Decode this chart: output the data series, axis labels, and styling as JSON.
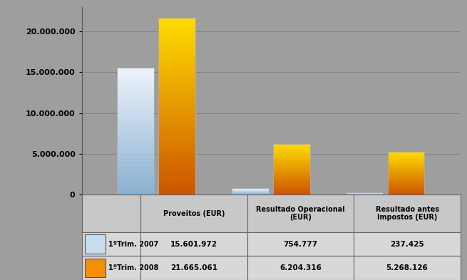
{
  "categories": [
    "Proveitos (EUR)",
    "Resultado Operacional\n(EUR)",
    "Resultado antes\nImpostos (EUR)"
  ],
  "series": [
    {
      "label": "1ºTrim. 2007",
      "values": [
        15601972,
        754777,
        237425
      ],
      "color_top": "#eef4fc",
      "color_bottom": "#8ab0d0",
      "edge_color": "#aaaaaa"
    },
    {
      "label": "1ºTrim. 2008",
      "values": [
        21665061,
        6204316,
        5268126
      ],
      "color_top": "#ffdd00",
      "color_bottom": "#cc5500",
      "edge_color": "#aaaaaa"
    }
  ],
  "table_rows": [
    [
      "1ºTrim. 2007",
      "15.601.972",
      "754.777",
      "237.425"
    ],
    [
      "1ºTrim. 2008",
      "21.665.061",
      "6.204.316",
      "5.268.126"
    ]
  ],
  "ylim": [
    0,
    23000000
  ],
  "yticks": [
    0,
    5000000,
    10000000,
    15000000,
    20000000
  ],
  "background_color": "#9e9e9e",
  "plot_bg_color": "#9e9e9e",
  "legend_box_colors": [
    "#c8ddf0",
    "#f0900a"
  ],
  "bar_width": 0.32,
  "figsize": [
    6.55,
    3.93
  ],
  "dpi": 100
}
